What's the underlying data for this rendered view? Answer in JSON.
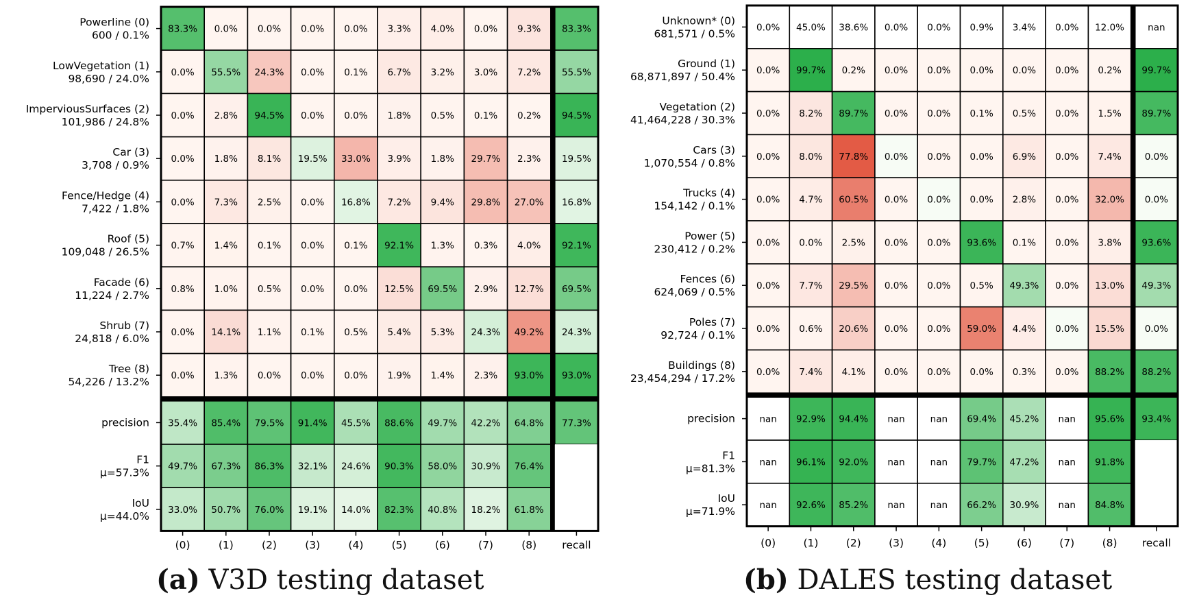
{
  "captions": [
    {
      "label": "(a)",
      "text": "V3D testing dataset"
    },
    {
      "label": "(b)",
      "text": "DALES testing dataset"
    }
  ],
  "chart_data": [
    {
      "type": "heatmap",
      "x_tick_labels": [
        "(0)",
        "(1)",
        "(2)",
        "(3)",
        "(4)",
        "(5)",
        "(6)",
        "(7)",
        "(8)",
        "recall"
      ],
      "rows": [
        {
          "name": "Powerline  (0)",
          "count": "600 / 0.1%",
          "values": [
            83.3,
            0.0,
            0.0,
            0.0,
            0.0,
            3.3,
            4.0,
            0.0,
            9.3
          ],
          "recall": 83.3
        },
        {
          "name": "LowVegetation  (1)",
          "count": "98,690 / 24.0%",
          "values": [
            0.0,
            55.5,
            24.3,
            0.0,
            0.1,
            6.7,
            3.2,
            3.0,
            7.2
          ],
          "recall": 55.5
        },
        {
          "name": "ImperviousSurfaces  (2)",
          "count": "101,986 / 24.8%",
          "values": [
            0.0,
            2.8,
            94.5,
            0.0,
            0.0,
            1.8,
            0.5,
            0.1,
            0.2
          ],
          "recall": 94.5
        },
        {
          "name": "Car  (3)",
          "count": "3,708 / 0.9%",
          "values": [
            0.0,
            1.8,
            8.1,
            19.5,
            33.0,
            3.9,
            1.8,
            29.7,
            2.3
          ],
          "recall": 19.5
        },
        {
          "name": "Fence/Hedge  (4)",
          "count": "7,422 / 1.8%",
          "values": [
            0.0,
            7.3,
            2.5,
            0.0,
            16.8,
            7.2,
            9.4,
            29.8,
            27.0
          ],
          "recall": 16.8
        },
        {
          "name": "Roof  (5)",
          "count": "109,048 / 26.5%",
          "values": [
            0.7,
            1.4,
            0.1,
            0.0,
            0.1,
            92.1,
            1.3,
            0.3,
            4.0
          ],
          "recall": 92.1
        },
        {
          "name": "Facade  (6)",
          "count": "11,224 / 2.7%",
          "values": [
            0.8,
            1.0,
            0.5,
            0.0,
            0.0,
            12.5,
            69.5,
            2.9,
            12.7
          ],
          "recall": 69.5
        },
        {
          "name": "Shrub  (7)",
          "count": "24,818 / 6.0%",
          "values": [
            0.0,
            14.1,
            1.1,
            0.1,
            0.5,
            5.4,
            5.3,
            24.3,
            49.2
          ],
          "recall": 24.3
        },
        {
          "name": "Tree  (8)",
          "count": "54,226 / 13.2%",
          "values": [
            0.0,
            1.3,
            0.0,
            0.0,
            0.0,
            1.9,
            1.4,
            2.3,
            93.0
          ],
          "recall": 93.0
        }
      ],
      "metric_rows": [
        {
          "name": "precision",
          "sub": "",
          "values": [
            35.4,
            85.4,
            79.5,
            91.4,
            45.5,
            88.6,
            49.7,
            42.2,
            64.8
          ],
          "last": 77.3
        },
        {
          "name": "F1",
          "sub": "μ=57.3%",
          "values": [
            49.7,
            67.3,
            86.3,
            32.1,
            24.6,
            90.3,
            58.0,
            30.9,
            76.4
          ],
          "last": null
        },
        {
          "name": "IoU",
          "sub": "μ=44.0%",
          "values": [
            33.0,
            50.7,
            76.0,
            19.1,
            14.0,
            82.3,
            40.8,
            18.2,
            61.8
          ],
          "last": null
        }
      ]
    },
    {
      "type": "heatmap",
      "x_tick_labels": [
        "(0)",
        "(1)",
        "(2)",
        "(3)",
        "(4)",
        "(5)",
        "(6)",
        "(7)",
        "(8)",
        "recall"
      ],
      "rows": [
        {
          "name": "Unknown*  (0)",
          "count": "681,571 / 0.5%",
          "values": [
            0.0,
            45.0,
            38.6,
            0.0,
            0.0,
            0.9,
            3.4,
            0.0,
            12.0
          ],
          "recall": "nan",
          "ignored": true
        },
        {
          "name": "Ground  (1)",
          "count": "68,871,897 / 50.4%",
          "values": [
            0.0,
            99.7,
            0.2,
            0.0,
            0.0,
            0.0,
            0.0,
            0.0,
            0.2
          ],
          "recall": 99.7
        },
        {
          "name": "Vegetation  (2)",
          "count": "41,464,228 / 30.3%",
          "values": [
            0.0,
            8.2,
            89.7,
            0.0,
            0.0,
            0.1,
            0.5,
            0.0,
            1.5
          ],
          "recall": 89.7
        },
        {
          "name": "Cars  (3)",
          "count": "1,070,554 / 0.8%",
          "values": [
            0.0,
            8.0,
            77.8,
            0.0,
            0.0,
            0.0,
            6.9,
            0.0,
            7.4
          ],
          "recall": 0.0
        },
        {
          "name": "Trucks  (4)",
          "count": "154,142 / 0.1%",
          "values": [
            0.0,
            4.7,
            60.5,
            0.0,
            0.0,
            0.0,
            2.8,
            0.0,
            32.0
          ],
          "recall": 0.0
        },
        {
          "name": "Power  (5)",
          "count": "230,412 / 0.2%",
          "values": [
            0.0,
            0.0,
            2.5,
            0.0,
            0.0,
            93.6,
            0.1,
            0.0,
            3.8
          ],
          "recall": 93.6
        },
        {
          "name": "Fences  (6)",
          "count": "624,069 / 0.5%",
          "values": [
            0.0,
            7.7,
            29.5,
            0.0,
            0.0,
            0.5,
            49.3,
            0.0,
            13.0
          ],
          "recall": 49.3
        },
        {
          "name": "Poles  (7)",
          "count": "92,724 / 0.1%",
          "values": [
            0.0,
            0.6,
            20.6,
            0.0,
            0.0,
            59.0,
            4.4,
            0.0,
            15.5
          ],
          "recall": 0.0
        },
        {
          "name": "Buildings  (8)",
          "count": "23,454,294 / 17.2%",
          "values": [
            0.0,
            7.4,
            4.1,
            0.0,
            0.0,
            0.0,
            0.3,
            0.0,
            88.2
          ],
          "recall": 88.2
        }
      ],
      "metric_rows": [
        {
          "name": "precision",
          "sub": "",
          "values": [
            "nan",
            92.9,
            94.4,
            "nan",
            "nan",
            69.4,
            45.2,
            "nan",
            95.6
          ],
          "last": 93.4
        },
        {
          "name": "F1",
          "sub": "μ=81.3%",
          "values": [
            "nan",
            96.1,
            92.0,
            "nan",
            "nan",
            79.7,
            47.2,
            "nan",
            91.8
          ],
          "last": null
        },
        {
          "name": "IoU",
          "sub": "μ=71.9%",
          "values": [
            "nan",
            92.6,
            85.2,
            "nan",
            "nan",
            66.2,
            30.9,
            "nan",
            84.8
          ],
          "last": null
        }
      ]
    }
  ]
}
